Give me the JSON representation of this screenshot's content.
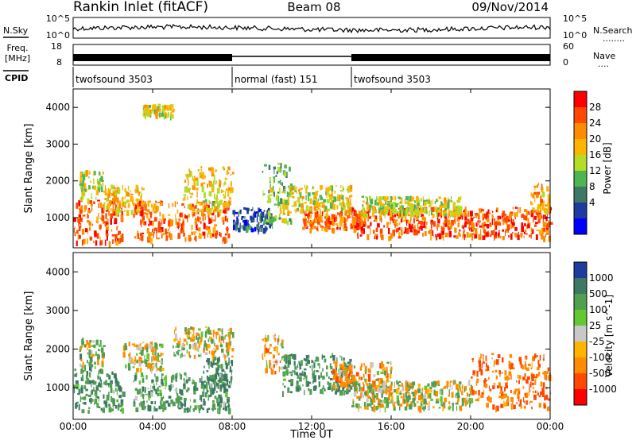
{
  "header": {
    "station": "Rankin Inlet (fitACF)",
    "beam": "Beam 08",
    "date": "09/Nov/2014"
  },
  "noise_panel": {
    "left_label": "N.Sky",
    "right_label": "N.Search",
    "right_legend": "........",
    "ticks": [
      "10^5",
      "10^0"
    ]
  },
  "freq_panel": {
    "left_label_line1": "Freq.",
    "left_label_line2": "[MHz]",
    "left_ticks": [
      "18",
      "8"
    ],
    "right_label": "Nave",
    "right_legend": "....",
    "right_ticks": [
      "60",
      "0"
    ]
  },
  "cpid": {
    "label": "CPID",
    "segments": [
      {
        "name": "twofsound 3503",
        "start_h": 0,
        "end_h": 8
      },
      {
        "name": "normal (fast) 151",
        "start_h": 8,
        "end_h": 14
      },
      {
        "name": "twofsound 3503",
        "start_h": 14,
        "end_h": 24
      }
    ]
  },
  "x_axis": {
    "label": "Time UT",
    "ticks": [
      "00:00",
      "04:00",
      "08:00",
      "12:00",
      "16:00",
      "20:00",
      "00:00"
    ],
    "range_h": [
      0,
      24
    ]
  },
  "chart_data": [
    {
      "type": "heatmap",
      "title": "",
      "xlabel": "Time UT",
      "ylabel": "Slant Range [km]",
      "ylim": [
        180,
        4500
      ],
      "yticks": [
        1000,
        2000,
        3000,
        4000
      ],
      "colorbar": {
        "label": "Power [dB]",
        "ticks": [
          "28",
          "24",
          "20",
          "16",
          "12",
          "8",
          "4"
        ],
        "colors": [
          "#ff0000",
          "#ff4800",
          "#ff8c00",
          "#ffb400",
          "#b4dc28",
          "#50b450",
          "#3c7864",
          "#1e3ca0",
          "#0000ff"
        ]
      },
      "regions": [
        {
          "t": [
            0,
            2.5
          ],
          "r": [
            350,
            1500
          ],
          "level": 26
        },
        {
          "t": [
            0.3,
            1.5
          ],
          "r": [
            1500,
            2300
          ],
          "level": 17
        },
        {
          "t": [
            1.5,
            3.5
          ],
          "r": [
            1200,
            1900
          ],
          "level": 20
        },
        {
          "t": [
            3.0,
            7.8
          ],
          "r": [
            450,
            1500
          ],
          "level": 25
        },
        {
          "t": [
            5.5,
            8.0
          ],
          "r": [
            1200,
            2400
          ],
          "level": 19
        },
        {
          "t": [
            3.5,
            5.0
          ],
          "r": [
            3800,
            4100
          ],
          "level": 18
        },
        {
          "t": [
            8.0,
            10.0
          ],
          "r": [
            700,
            1300
          ],
          "level": 8
        },
        {
          "t": [
            9.5,
            11.0
          ],
          "r": [
            900,
            2500
          ],
          "level": 14
        },
        {
          "t": [
            10.5,
            14.0
          ],
          "r": [
            1200,
            1900
          ],
          "level": 18
        },
        {
          "t": [
            11.5,
            14.5
          ],
          "r": [
            700,
            1200
          ],
          "level": 25
        },
        {
          "t": [
            14.0,
            24.0
          ],
          "r": [
            500,
            1300
          ],
          "level": 26
        },
        {
          "t": [
            14.5,
            19.5
          ],
          "r": [
            1100,
            1600
          ],
          "level": 17
        },
        {
          "t": [
            23.0,
            24.0
          ],
          "r": [
            1200,
            2000
          ],
          "level": 22
        }
      ]
    },
    {
      "type": "heatmap",
      "title": "",
      "xlabel": "Time UT",
      "ylabel": "Slant Range [km]",
      "ylim": [
        180,
        4500
      ],
      "yticks": [
        1000,
        2000,
        3000,
        4000
      ],
      "colorbar": {
        "label": "Velocity [m s^-1]",
        "ticks": [
          "1000",
          "500",
          "100",
          "25",
          "-25",
          "-100",
          "-500",
          "-1000"
        ],
        "colors": [
          "#1e3ca0",
          "#3c7864",
          "#50a050",
          "#64c832",
          "#c8c8c8",
          "#ffb400",
          "#ff8c00",
          "#ff4800",
          "#ff0000"
        ]
      },
      "regions": [
        {
          "t": [
            0,
            2.5
          ],
          "r": [
            400,
            1500
          ],
          "v": 300
        },
        {
          "t": [
            0.3,
            1.5
          ],
          "r": [
            1500,
            2300
          ],
          "v": 80
        },
        {
          "t": [
            2.5,
            4.5
          ],
          "r": [
            1500,
            2200
          ],
          "v": 0
        },
        {
          "t": [
            3.0,
            7.8
          ],
          "r": [
            450,
            1400
          ],
          "v": 250
        },
        {
          "t": [
            5.0,
            8.0
          ],
          "r": [
            1800,
            2600
          ],
          "v": 0
        },
        {
          "t": [
            6.5,
            8.0
          ],
          "r": [
            900,
            1800
          ],
          "v": 400
        },
        {
          "t": [
            9.5,
            10.5
          ],
          "r": [
            1400,
            2400
          ],
          "v": -150
        },
        {
          "t": [
            10.5,
            14.0
          ],
          "r": [
            900,
            1900
          ],
          "v": 300
        },
        {
          "t": [
            13.0,
            16.0
          ],
          "r": [
            1000,
            1700
          ],
          "v": -150
        },
        {
          "t": [
            14.0,
            20.0
          ],
          "r": [
            500,
            1200
          ],
          "v": 0
        },
        {
          "t": [
            20.0,
            24.0
          ],
          "r": [
            500,
            1900
          ],
          "v": -300
        }
      ]
    }
  ]
}
